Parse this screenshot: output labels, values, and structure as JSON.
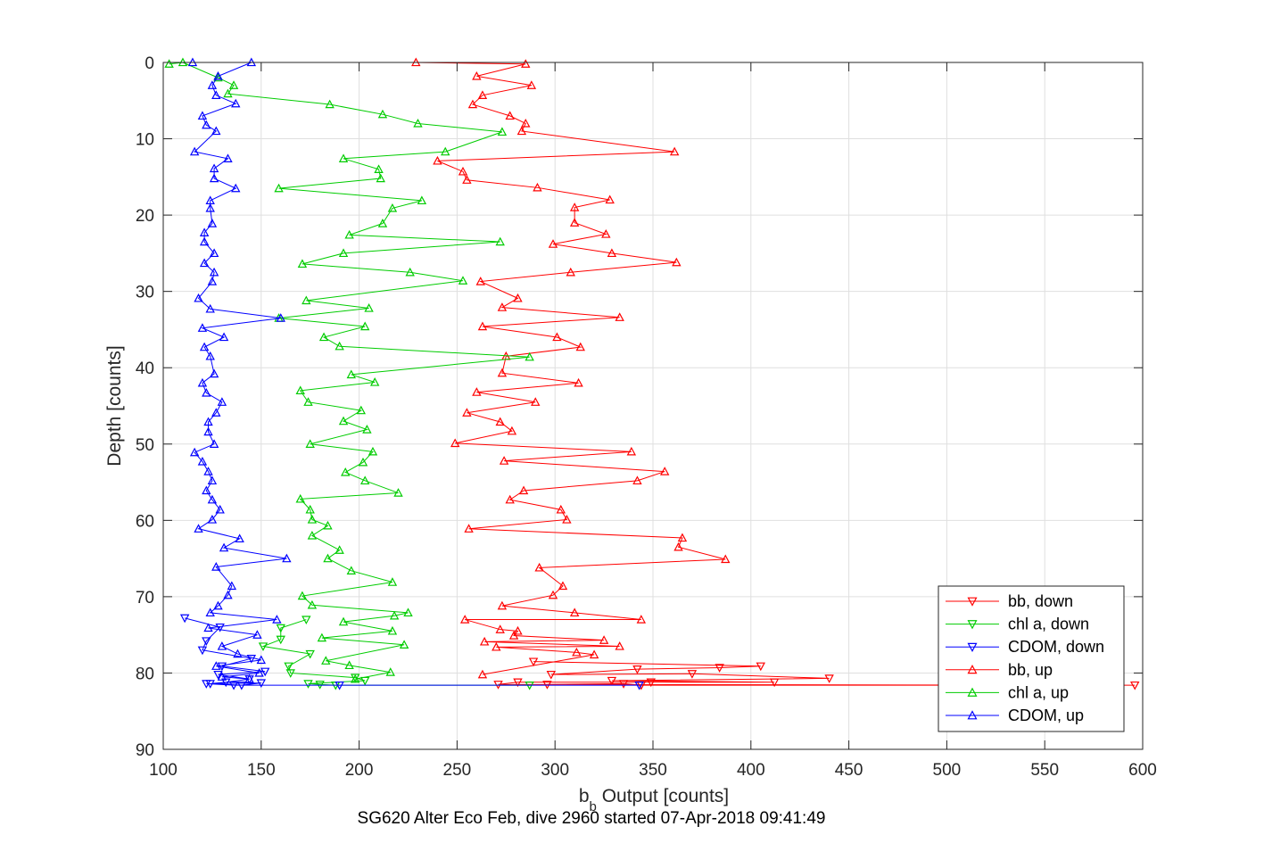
{
  "chart_data": {
    "type": "line",
    "title": "",
    "xlabel_main": "b",
    "xlabel_sub": "b",
    "xlabel_rest": " Output [counts]",
    "ylabel": "Depth [counts]",
    "caption": "SG620 Alter Eco Feb, dive 2960 started 07-Apr-2018 09:41:49",
    "xlim": [
      100,
      600
    ],
    "ylim": [
      0,
      90
    ],
    "y_reversed": true,
    "grid": true,
    "xticks": [
      100,
      150,
      200,
      250,
      300,
      350,
      400,
      450,
      500,
      550,
      600
    ],
    "yticks": [
      0,
      10,
      20,
      30,
      40,
      50,
      60,
      70,
      80,
      90
    ],
    "legend_position": "bottom-right",
    "series": [
      {
        "name": "bb, down",
        "color": "#ff0000",
        "marker": "triangle-down",
        "points": [
          [
            289,
            78.5
          ],
          [
            405,
            79.1
          ],
          [
            384,
            79.3
          ],
          [
            342,
            79.5
          ],
          [
            298,
            80.2
          ],
          [
            370,
            80.1
          ],
          [
            440,
            80.7
          ],
          [
            329,
            81.0
          ],
          [
            412,
            81.2
          ],
          [
            349,
            81.2
          ],
          [
            281,
            81.2
          ],
          [
            271,
            81.5
          ],
          [
            596,
            81.6
          ],
          [
            344,
            81.6
          ],
          [
            335,
            81.4
          ],
          [
            296,
            81.5
          ]
        ]
      },
      {
        "name": "chl a, down",
        "color": "#00cc00",
        "marker": "triangle-down",
        "points": [
          [
            173,
            73.0
          ],
          [
            160,
            74.1
          ],
          [
            160,
            75.6
          ],
          [
            151,
            76.5
          ],
          [
            175,
            77.5
          ],
          [
            164,
            79.1
          ],
          [
            165,
            80.0
          ],
          [
            198,
            80.6
          ],
          [
            203,
            81.0
          ],
          [
            174,
            81.4
          ],
          [
            180,
            81.5
          ],
          [
            188,
            81.6
          ],
          [
            287,
            81.6
          ]
        ]
      },
      {
        "name": "CDOM, down",
        "color": "#0000ff",
        "marker": "triangle-down",
        "points": [
          [
            111,
            72.8
          ],
          [
            129,
            74.0
          ],
          [
            122,
            75.8
          ],
          [
            120,
            77.0
          ],
          [
            145,
            78.1
          ],
          [
            130,
            79.1
          ],
          [
            152,
            79.8
          ],
          [
            128,
            80.2
          ],
          [
            144,
            80.8
          ],
          [
            132,
            81.2
          ],
          [
            124,
            81.4
          ],
          [
            150,
            81.3
          ],
          [
            140,
            81.6
          ],
          [
            122,
            81.4
          ],
          [
            136,
            81.6
          ],
          [
            190,
            81.6
          ],
          [
            343,
            81.6
          ]
        ]
      },
      {
        "name": "bb, up",
        "color": "#ff0000",
        "marker": "triangle-up",
        "points": [
          [
            229,
            0.0
          ],
          [
            285,
            0.2
          ],
          [
            260,
            1.8
          ],
          [
            288,
            3.0
          ],
          [
            263,
            4.3
          ],
          [
            258,
            5.5
          ],
          [
            277,
            7.0
          ],
          [
            285,
            8.0
          ],
          [
            283,
            9.0
          ],
          [
            361,
            11.7
          ],
          [
            240,
            12.9
          ],
          [
            253,
            14.3
          ],
          [
            255,
            15.4
          ],
          [
            291,
            16.4
          ],
          [
            328,
            18.0
          ],
          [
            310,
            19.0
          ],
          [
            310,
            21.0
          ],
          [
            326,
            22.5
          ],
          [
            299,
            23.8
          ],
          [
            329,
            25.0
          ],
          [
            362,
            26.2
          ],
          [
            308,
            27.5
          ],
          [
            262,
            28.7
          ],
          [
            281,
            30.9
          ],
          [
            273,
            32.1
          ],
          [
            333,
            33.4
          ],
          [
            263,
            34.6
          ],
          [
            301,
            36.0
          ],
          [
            313,
            37.3
          ],
          [
            275,
            38.5
          ],
          [
            273,
            40.7
          ],
          [
            312,
            42.0
          ],
          [
            260,
            43.2
          ],
          [
            290,
            44.5
          ],
          [
            255,
            45.9
          ],
          [
            272,
            47.1
          ],
          [
            278,
            48.3
          ],
          [
            249,
            49.9
          ],
          [
            339,
            51.0
          ],
          [
            274,
            52.2
          ],
          [
            356,
            53.6
          ],
          [
            342,
            54.8
          ],
          [
            284,
            56.1
          ],
          [
            277,
            57.3
          ],
          [
            303,
            58.6
          ],
          [
            306,
            59.9
          ],
          [
            256,
            61.1
          ],
          [
            365,
            62.3
          ],
          [
            363,
            63.5
          ],
          [
            387,
            65.1
          ],
          [
            292,
            66.2
          ],
          [
            304,
            68.6
          ],
          [
            299,
            69.8
          ],
          [
            273,
            71.2
          ],
          [
            310,
            72.1
          ],
          [
            344,
            73.0
          ],
          [
            254,
            73.0
          ],
          [
            272,
            74.3
          ],
          [
            281,
            74.5
          ],
          [
            279,
            75.1
          ],
          [
            325,
            75.7
          ],
          [
            264,
            75.9
          ],
          [
            333,
            76.5
          ],
          [
            270,
            76.6
          ],
          [
            311,
            77.3
          ],
          [
            320,
            77.6
          ],
          [
            263,
            80.2
          ]
        ]
      },
      {
        "name": "chl a, up",
        "color": "#00cc00",
        "marker": "triangle-up",
        "points": [
          [
            103,
            0.2
          ],
          [
            110,
            0.0
          ],
          [
            128,
            2.0
          ],
          [
            136,
            3.0
          ],
          [
            133,
            4.1
          ],
          [
            185,
            5.5
          ],
          [
            212,
            6.8
          ],
          [
            230,
            8.0
          ],
          [
            273,
            9.1
          ],
          [
            244,
            11.7
          ],
          [
            192,
            12.6
          ],
          [
            210,
            14.0
          ],
          [
            211,
            15.2
          ],
          [
            159,
            16.5
          ],
          [
            232,
            18.1
          ],
          [
            217,
            19.1
          ],
          [
            212,
            21.1
          ],
          [
            195,
            22.6
          ],
          [
            272,
            23.5
          ],
          [
            192,
            25.0
          ],
          [
            171,
            26.4
          ],
          [
            226,
            27.5
          ],
          [
            253,
            28.6
          ],
          [
            173,
            31.2
          ],
          [
            205,
            32.2
          ],
          [
            159,
            33.5
          ],
          [
            203,
            34.6
          ],
          [
            182,
            36.0
          ],
          [
            190,
            37.2
          ],
          [
            287,
            38.6
          ],
          [
            196,
            40.9
          ],
          [
            208,
            41.9
          ],
          [
            170,
            43.0
          ],
          [
            174,
            44.5
          ],
          [
            201,
            45.6
          ],
          [
            192,
            47.0
          ],
          [
            204,
            48.1
          ],
          [
            175,
            50.0
          ],
          [
            207,
            51.0
          ],
          [
            202,
            52.4
          ],
          [
            193,
            53.7
          ],
          [
            203,
            54.8
          ],
          [
            220,
            56.4
          ],
          [
            170,
            57.2
          ],
          [
            175,
            58.6
          ],
          [
            176,
            59.9
          ],
          [
            184,
            60.7
          ],
          [
            176,
            62.0
          ],
          [
            190,
            63.9
          ],
          [
            184,
            65.0
          ],
          [
            196,
            66.6
          ],
          [
            217,
            68.1
          ],
          [
            171,
            69.9
          ],
          [
            176,
            71.1
          ],
          [
            225,
            72.1
          ],
          [
            218,
            72.5
          ],
          [
            192,
            73.3
          ],
          [
            217,
            74.5
          ],
          [
            181,
            75.4
          ],
          [
            223,
            76.3
          ],
          [
            183,
            78.4
          ],
          [
            195,
            79.0
          ],
          [
            216,
            79.9
          ],
          [
            198,
            80.8
          ]
        ]
      },
      {
        "name": "CDOM, up",
        "color": "#0000ff",
        "marker": "triangle-up",
        "points": [
          [
            115,
            0.0
          ],
          [
            145,
            0.0
          ],
          [
            128,
            1.8
          ],
          [
            125,
            3.0
          ],
          [
            127,
            4.3
          ],
          [
            137,
            5.4
          ],
          [
            120,
            7.0
          ],
          [
            122,
            8.2
          ],
          [
            127,
            9.0
          ],
          [
            116,
            11.7
          ],
          [
            133,
            12.6
          ],
          [
            126,
            13.9
          ],
          [
            126,
            15.2
          ],
          [
            137,
            16.5
          ],
          [
            124,
            18.1
          ],
          [
            124,
            19.1
          ],
          [
            125,
            21.1
          ],
          [
            121,
            22.3
          ],
          [
            121,
            23.5
          ],
          [
            126,
            25.0
          ],
          [
            121,
            26.3
          ],
          [
            126,
            27.5
          ],
          [
            125,
            28.7
          ],
          [
            118,
            30.9
          ],
          [
            124,
            32.3
          ],
          [
            160,
            33.5
          ],
          [
            120,
            34.8
          ],
          [
            131,
            36.0
          ],
          [
            121,
            37.3
          ],
          [
            124,
            38.5
          ],
          [
            126,
            40.8
          ],
          [
            120,
            42.0
          ],
          [
            122,
            43.3
          ],
          [
            130,
            44.5
          ],
          [
            127,
            45.9
          ],
          [
            123,
            47.1
          ],
          [
            123,
            48.4
          ],
          [
            126,
            50.0
          ],
          [
            116,
            51.1
          ],
          [
            120,
            52.3
          ],
          [
            123,
            53.6
          ],
          [
            125,
            54.8
          ],
          [
            122,
            56.1
          ],
          [
            125,
            57.3
          ],
          [
            129,
            58.6
          ],
          [
            125,
            59.9
          ],
          [
            118,
            61.1
          ],
          [
            139,
            62.4
          ],
          [
            131,
            63.6
          ],
          [
            163,
            65.0
          ],
          [
            127,
            66.1
          ],
          [
            135,
            68.6
          ],
          [
            133,
            69.8
          ],
          [
            128,
            71.2
          ],
          [
            124,
            72.1
          ],
          [
            158,
            73.0
          ],
          [
            123,
            74.1
          ],
          [
            148,
            75.0
          ],
          [
            130,
            76.5
          ],
          [
            138,
            77.5
          ],
          [
            150,
            78.3
          ],
          [
            127,
            79.1
          ],
          [
            149,
            80.0
          ],
          [
            130,
            80.5
          ],
          [
            144,
            80.8
          ]
        ]
      }
    ]
  }
}
